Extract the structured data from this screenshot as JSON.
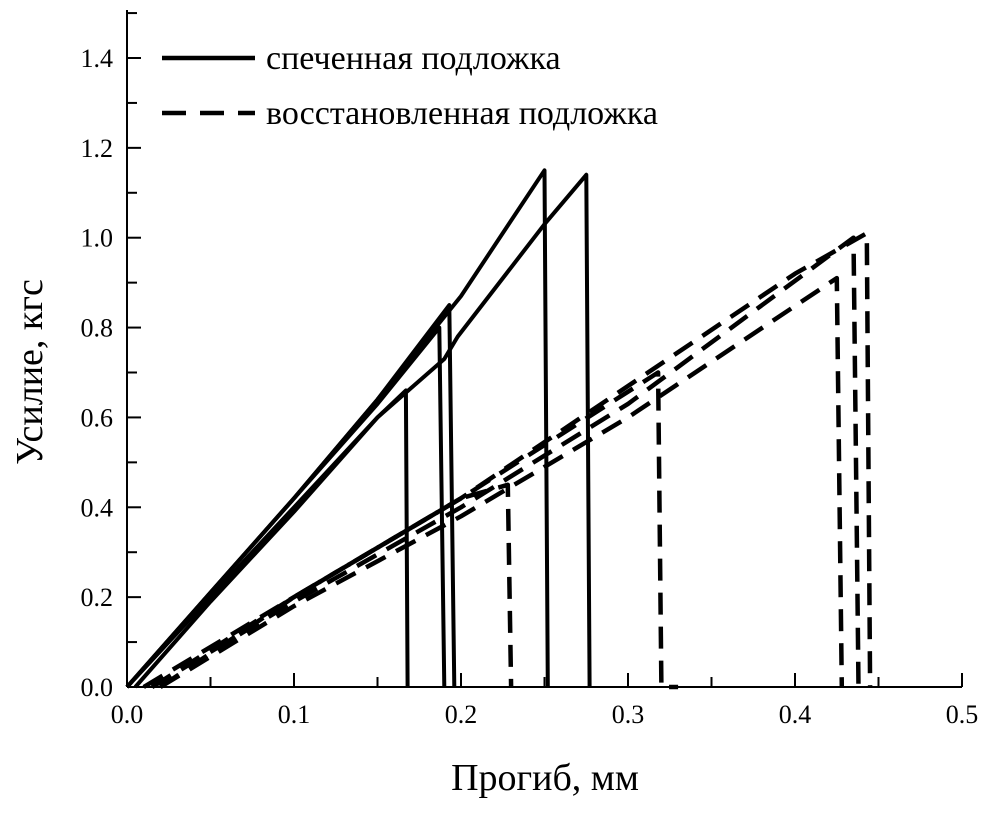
{
  "chart_data": {
    "type": "line",
    "title": "",
    "xlabel": "Прогиб, мм",
    "ylabel": "Усилие, кгс",
    "xlim": [
      0,
      0.5
    ],
    "ylim": [
      0,
      1.5
    ],
    "xticks": [
      "0.0",
      "0.1",
      "0.2",
      "0.3",
      "0.4",
      "0.5"
    ],
    "yticks": [
      "0.0",
      "0.2",
      "0.4",
      "0.6",
      "0.8",
      "1.0",
      "1.2",
      "1.4"
    ],
    "grid": false,
    "legend_position": "top-left",
    "line_color": "#000000",
    "legend": [
      {
        "label": "спеченная подложка",
        "style": "solid"
      },
      {
        "label": "восстановленная подложка",
        "style": "dashed"
      }
    ],
    "series": [
      {
        "group": "спеченная подложка",
        "style": "solid",
        "points": [
          [
            0.0,
            0.0
          ],
          [
            0.05,
            0.2
          ],
          [
            0.1,
            0.4
          ],
          [
            0.15,
            0.6
          ],
          [
            0.167,
            0.66
          ],
          [
            0.168,
            0.0
          ]
        ]
      },
      {
        "group": "спеченная подложка",
        "style": "solid",
        "points": [
          [
            0.0,
            0.0
          ],
          [
            0.05,
            0.21
          ],
          [
            0.1,
            0.42
          ],
          [
            0.15,
            0.63
          ],
          [
            0.187,
            0.8
          ],
          [
            0.19,
            0.0
          ]
        ]
      },
      {
        "group": "спеченная подложка",
        "style": "solid",
        "points": [
          [
            0.0,
            0.0
          ],
          [
            0.05,
            0.21
          ],
          [
            0.1,
            0.42
          ],
          [
            0.15,
            0.64
          ],
          [
            0.193,
            0.85
          ],
          [
            0.196,
            0.0
          ]
        ]
      },
      {
        "group": "спеченная подложка",
        "style": "solid",
        "points": [
          [
            0.0,
            0.0
          ],
          [
            0.05,
            0.21
          ],
          [
            0.1,
            0.42
          ],
          [
            0.15,
            0.64
          ],
          [
            0.2,
            0.87
          ],
          [
            0.25,
            1.15
          ],
          [
            0.252,
            0.0
          ]
        ]
      },
      {
        "group": "спеченная подложка",
        "style": "solid",
        "points": [
          [
            0.005,
            0.0
          ],
          [
            0.05,
            0.19
          ],
          [
            0.1,
            0.39
          ],
          [
            0.15,
            0.6
          ],
          [
            0.19,
            0.73
          ],
          [
            0.198,
            0.78
          ],
          [
            0.25,
            1.03
          ],
          [
            0.275,
            1.14
          ],
          [
            0.277,
            0.0
          ]
        ]
      },
      {
        "group": "восстановленная подложка",
        "style": "dashed",
        "points": [
          [
            0.01,
            0.0
          ],
          [
            0.1,
            0.2
          ],
          [
            0.2,
            0.42
          ],
          [
            0.228,
            0.45
          ],
          [
            0.23,
            0.0
          ]
        ]
      },
      {
        "group": "восстановленная подложка",
        "style": "dashed",
        "points": [
          [
            0.015,
            0.0
          ],
          [
            0.1,
            0.2
          ],
          [
            0.2,
            0.42
          ],
          [
            0.318,
            0.7
          ],
          [
            0.32,
            0.0
          ],
          [
            0.33,
            0.0
          ]
        ]
      },
      {
        "group": "восстановленная подложка",
        "style": "dashed",
        "points": [
          [
            0.02,
            0.0
          ],
          [
            0.1,
            0.18
          ],
          [
            0.2,
            0.38
          ],
          [
            0.3,
            0.6
          ],
          [
            0.425,
            0.91
          ],
          [
            0.428,
            0.0
          ]
        ]
      },
      {
        "group": "восстановленная подложка",
        "style": "dashed",
        "points": [
          [
            0.015,
            0.0
          ],
          [
            0.1,
            0.19
          ],
          [
            0.2,
            0.4
          ],
          [
            0.3,
            0.63
          ],
          [
            0.435,
            1.0
          ],
          [
            0.438,
            0.0
          ]
        ]
      },
      {
        "group": "восстановленная подложка",
        "style": "dashed",
        "points": [
          [
            0.02,
            0.0
          ],
          [
            0.1,
            0.2
          ],
          [
            0.2,
            0.42
          ],
          [
            0.3,
            0.67
          ],
          [
            0.4,
            0.92
          ],
          [
            0.443,
            1.01
          ],
          [
            0.445,
            0.0
          ]
        ]
      }
    ]
  }
}
